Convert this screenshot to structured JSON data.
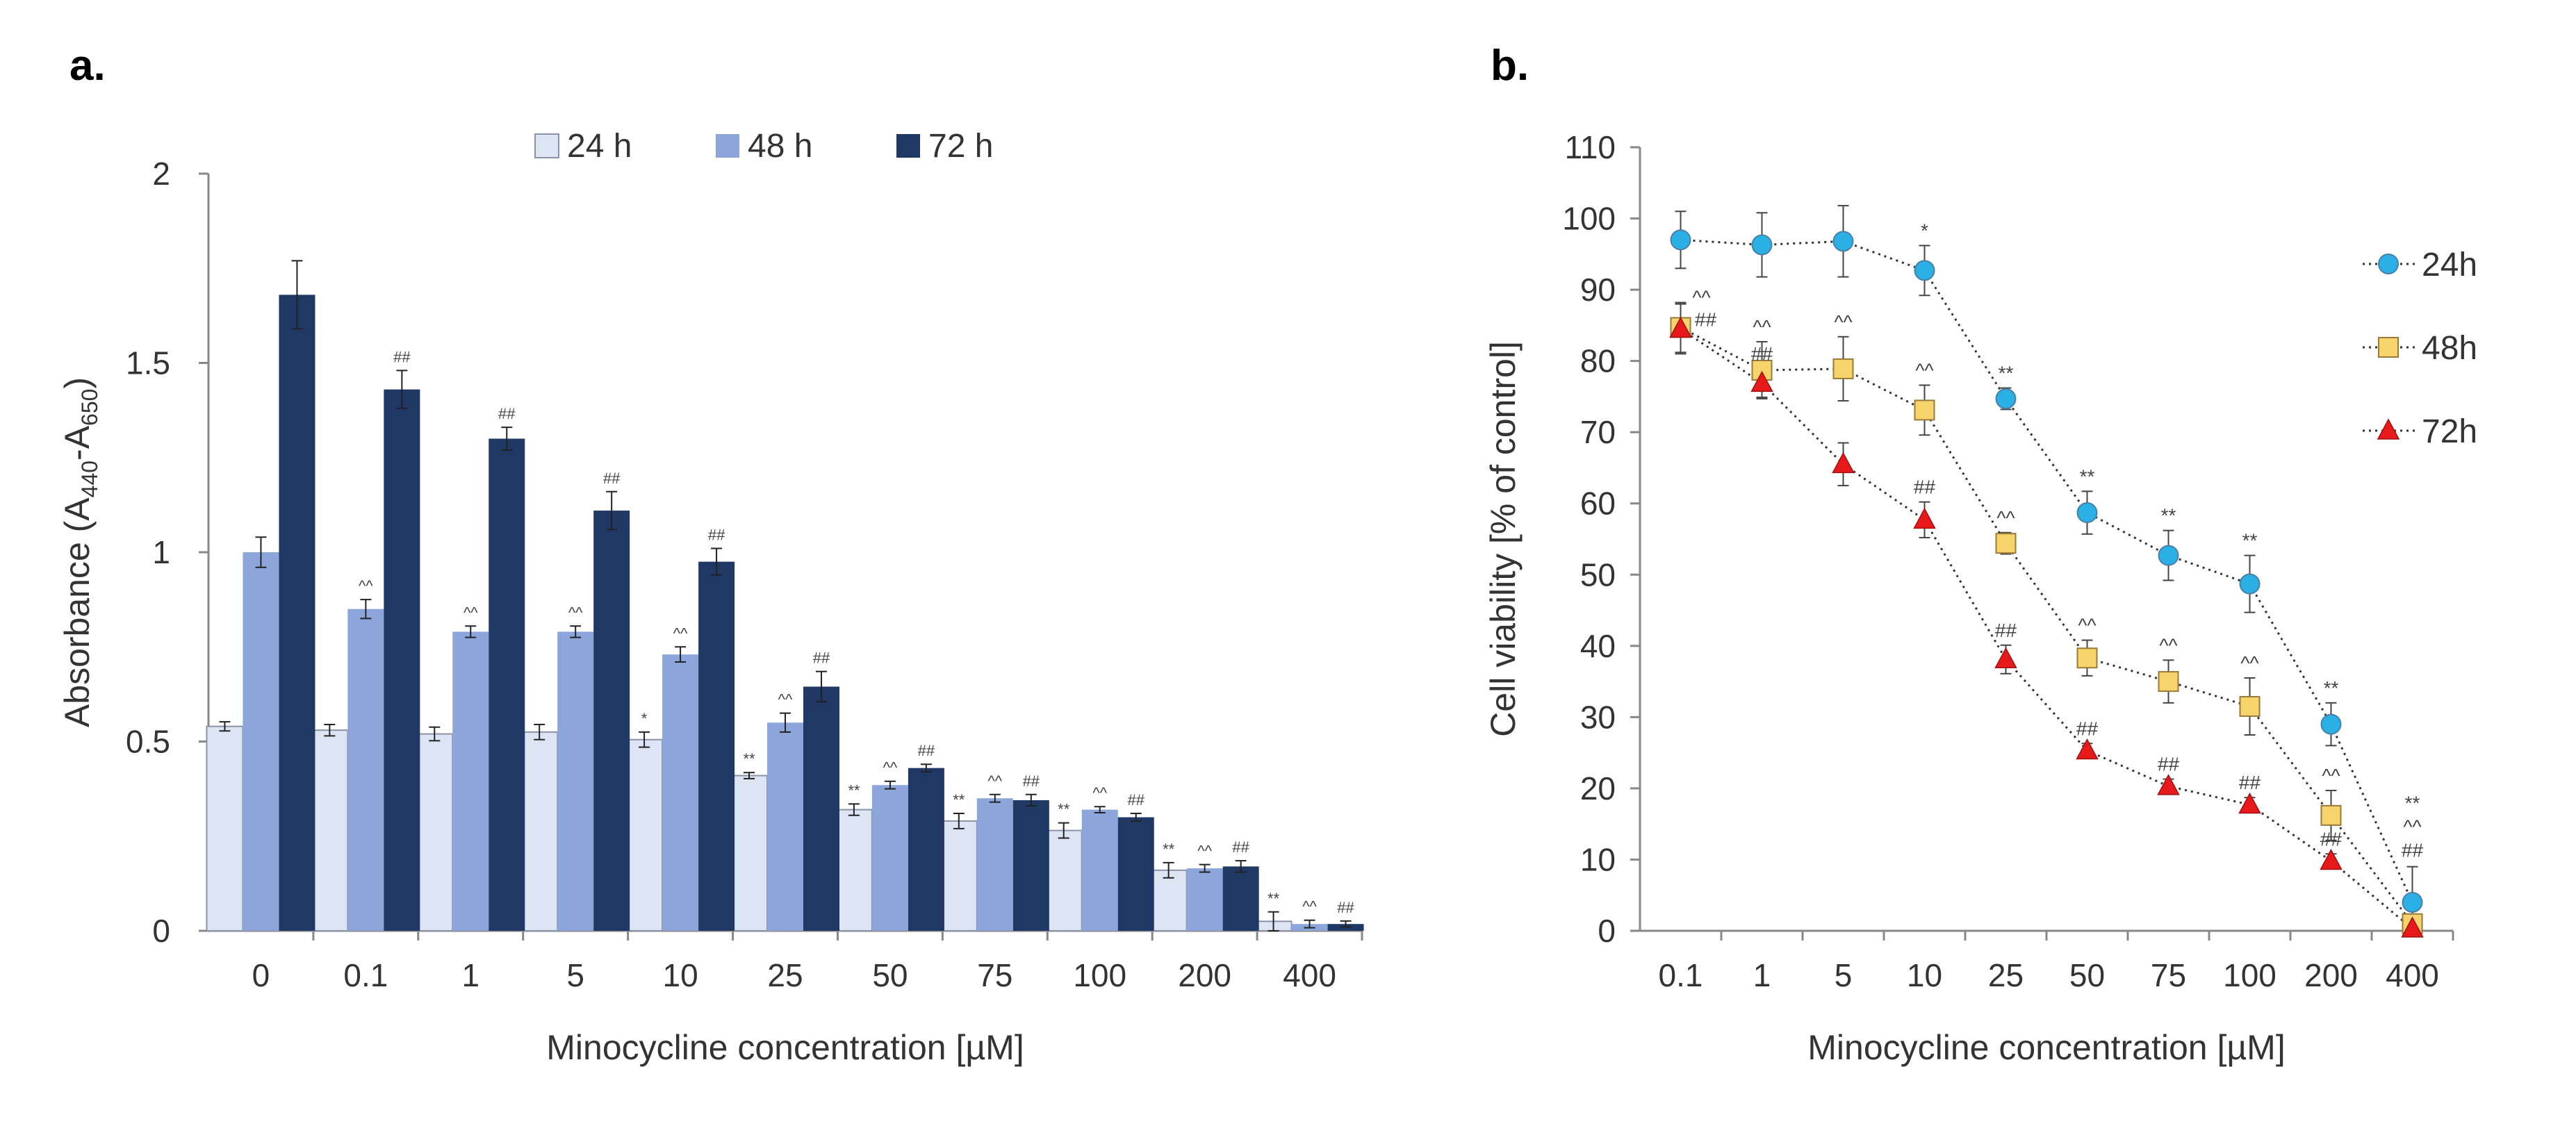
{
  "chart_data": [
    {
      "type": "bar",
      "panel_label": "a.",
      "title": "",
      "xlabel": "Minocycline concentration [µM]",
      "ylabel_parts": {
        "main": "Absorbance (A",
        "sub1": "440",
        "mid": "-A",
        "sub2": "650",
        "end": ")"
      },
      "ylim": [
        0,
        2
      ],
      "yticks": [
        "0",
        "0.5",
        "1",
        "1.5",
        "2"
      ],
      "grid": false,
      "legend_position": "top",
      "categories": [
        "0",
        "0.1",
        "1",
        "5",
        "10",
        "25",
        "50",
        "75",
        "100",
        "200",
        "400"
      ],
      "series": [
        {
          "name": "24 h",
          "color": "#dde4f4",
          "values": [
            0.54,
            0.53,
            0.52,
            0.525,
            0.505,
            0.41,
            0.32,
            0.29,
            0.265,
            0.16,
            0.025
          ],
          "errors": [
            0.012,
            0.015,
            0.018,
            0.02,
            0.02,
            0.008,
            0.015,
            0.02,
            0.02,
            0.02,
            0.025
          ],
          "sig": [
            "",
            "",
            "",
            "",
            "*",
            "**",
            "**",
            "**",
            "**",
            "**",
            "**"
          ]
        },
        {
          "name": "48 h",
          "color": "#8ca6dc",
          "values": [
            1.0,
            0.85,
            0.79,
            0.79,
            0.73,
            0.55,
            0.385,
            0.35,
            0.32,
            0.165,
            0.018
          ],
          "errors": [
            0.04,
            0.025,
            0.015,
            0.015,
            0.02,
            0.025,
            0.01,
            0.01,
            0.008,
            0.01,
            0.01
          ],
          "sig": [
            "",
            "^^",
            "^^",
            "^^",
            "^^",
            "^^",
            "^^",
            "^^",
            "^^",
            "^^",
            "^^"
          ]
        },
        {
          "name": "72 h",
          "color": "#1f3864",
          "values": [
            1.68,
            1.43,
            1.3,
            1.11,
            0.975,
            0.645,
            0.43,
            0.345,
            0.3,
            0.17,
            0.018
          ],
          "errors": [
            0.09,
            0.05,
            0.03,
            0.05,
            0.035,
            0.04,
            0.01,
            0.015,
            0.01,
            0.015,
            0.008
          ],
          "sig": [
            "",
            "##",
            "##",
            "##",
            "##",
            "##",
            "##",
            "##",
            "##",
            "##",
            "##"
          ]
        }
      ]
    },
    {
      "type": "line",
      "panel_label": "b.",
      "title": "",
      "xlabel": "Minocycline concentration [µM]",
      "ylabel": "Cell viability [% of control]",
      "ylim": [
        0,
        110
      ],
      "yticks": [
        "0",
        "10",
        "20",
        "30",
        "40",
        "50",
        "60",
        "70",
        "80",
        "90",
        "100",
        "110"
      ],
      "grid": false,
      "legend_position": "top-right",
      "categories": [
        "0.1",
        "1",
        "5",
        "10",
        "25",
        "50",
        "75",
        "100",
        "200",
        "400"
      ],
      "series": [
        {
          "name": "24h",
          "marker": "circle",
          "color": "#2ab0e4",
          "values": [
            97,
            96.3,
            96.8,
            92.7,
            74.7,
            58.7,
            52.7,
            48.7,
            29,
            4
          ],
          "errors": [
            4,
            4.5,
            5,
            3.5,
            1.5,
            3,
            3.5,
            4,
            3,
            5
          ],
          "sig": [
            "",
            "",
            "",
            "*",
            "**",
            "**",
            "**",
            "**",
            "**",
            "**"
          ]
        },
        {
          "name": "48h",
          "marker": "square",
          "color": "#f6d36b",
          "values": [
            84.7,
            78.7,
            78.9,
            73.1,
            54.4,
            38.3,
            35.0,
            31.5,
            16.2,
            1.0
          ],
          "errors": [
            3.5,
            4,
            4.5,
            3.5,
            1.5,
            2.5,
            3,
            4,
            3.5,
            2
          ],
          "sig": [
            "^^",
            "^^",
            "^^",
            "^^",
            "^^",
            "^^",
            "^^",
            "^^",
            "^^",
            "^^"
          ]
        },
        {
          "name": "72h",
          "marker": "triangle",
          "color": "#e8191b",
          "values": [
            84.5,
            76.9,
            65.5,
            57.7,
            38.1,
            25.3,
            20.3,
            17.7,
            9.8,
            0.3
          ],
          "errors": [
            3.5,
            2,
            3,
            2.5,
            2,
            1,
            1,
            1,
            1,
            0.5
          ],
          "sig": [
            "##",
            "##",
            "",
            "##",
            "##",
            "##",
            "##",
            "##",
            "##",
            "##"
          ]
        }
      ]
    }
  ]
}
